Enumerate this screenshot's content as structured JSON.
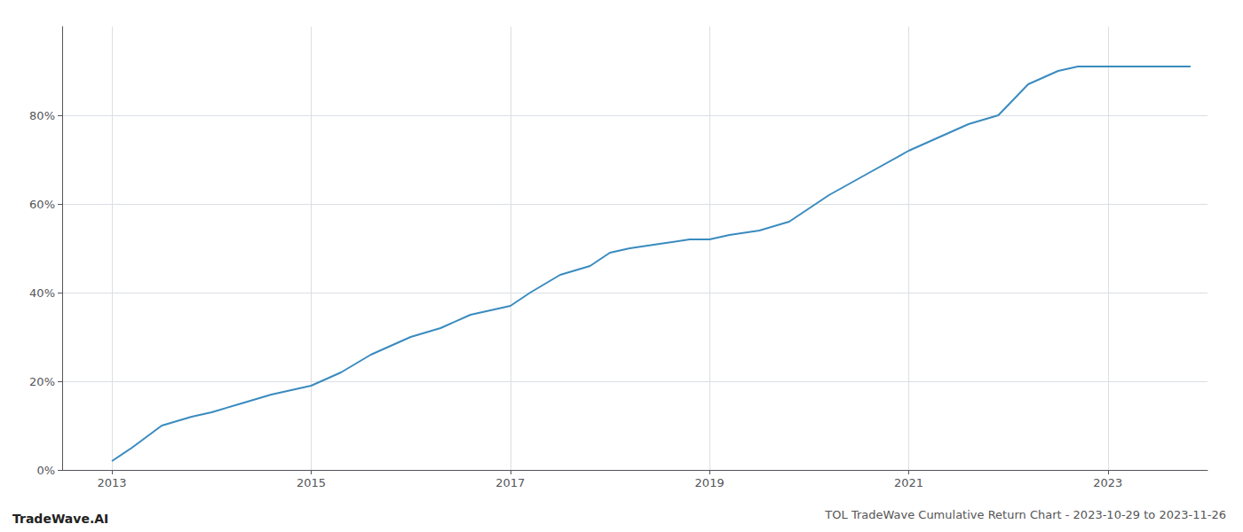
{
  "chart_data": {
    "type": "line",
    "title": "TOL TradeWave Cumulative Return Chart - 2023-10-29 to 2023-11-26",
    "annotations": [
      "TradeWave.AI"
    ],
    "x": [
      2013.0,
      2013.2,
      2013.5,
      2013.8,
      2014.0,
      2014.3,
      2014.6,
      2015.0,
      2015.3,
      2015.6,
      2016.0,
      2016.3,
      2016.6,
      2017.0,
      2017.2,
      2017.5,
      2017.8,
      2018.0,
      2018.2,
      2018.5,
      2018.8,
      2019.0,
      2019.2,
      2019.5,
      2019.8,
      2020.2,
      2020.6,
      2021.0,
      2021.3,
      2021.6,
      2021.9,
      2022.2,
      2022.5,
      2022.7,
      2022.9,
      2023.0,
      2023.83
    ],
    "values": [
      2,
      5,
      10,
      12,
      13,
      15,
      17,
      19,
      22,
      26,
      30,
      32,
      35,
      37,
      40,
      44,
      46,
      49,
      50,
      51,
      52,
      52,
      53,
      54,
      56,
      62,
      67,
      72,
      75,
      78,
      80,
      87,
      90,
      91,
      91,
      91,
      91
    ],
    "color": "#3a8bbf",
    "xlim": [
      2012.5,
      2024.0
    ],
    "xticks": [
      2013,
      2015,
      2017,
      2019,
      2021,
      2023
    ],
    "ylim": [
      0,
      100
    ],
    "yticks": [
      {
        "value": 0,
        "label": "0%"
      },
      {
        "value": 20,
        "label": "20%"
      },
      {
        "value": 40,
        "label": "40%"
      },
      {
        "value": 60,
        "label": "60%"
      },
      {
        "value": 80,
        "label": "80%"
      }
    ],
    "grid": true
  }
}
